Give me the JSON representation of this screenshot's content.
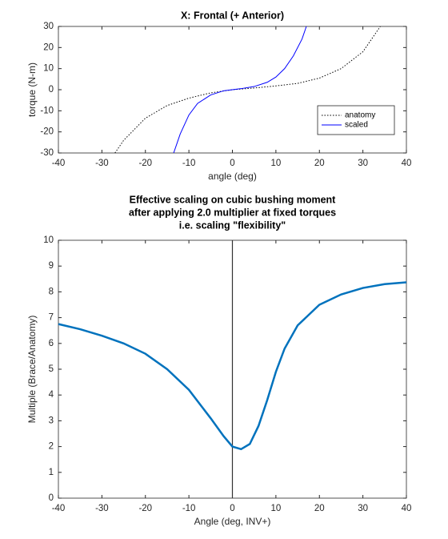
{
  "chart_data": [
    {
      "type": "line",
      "title": "X: Frontal (+ Anterior)",
      "xlabel": "angle (deg)",
      "ylabel": "torque (N-m)",
      "xlim": [
        -40,
        40
      ],
      "xticks": [
        -40,
        -30,
        -20,
        -10,
        0,
        10,
        20,
        30,
        40
      ],
      "ylim": [
        -30,
        30
      ],
      "yticks": [
        -30,
        -20,
        -10,
        0,
        10,
        20,
        30
      ],
      "legend": "lower right",
      "series": [
        {
          "name": "anatomy",
          "color": "#000000",
          "dash": "dotted",
          "x": [
            -27,
            -25,
            -20,
            -15,
            -10,
            -5,
            0,
            5,
            10,
            15,
            20,
            25,
            30,
            34
          ],
          "values": [
            -30,
            -24,
            -13.5,
            -7.5,
            -4,
            -1.5,
            0,
            0.8,
            1.8,
            3,
            5.5,
            10,
            18,
            30
          ]
        },
        {
          "name": "scaled",
          "color": "#0000ff",
          "dash": "solid",
          "x": [
            -13.5,
            -12,
            -10,
            -8,
            -5,
            -2,
            0,
            2,
            5,
            8,
            10,
            12,
            14,
            16,
            17
          ],
          "values": [
            -30,
            -21,
            -12,
            -6.5,
            -2.5,
            -0.5,
            0,
            0.5,
            1.5,
            3.5,
            6,
            10,
            16,
            24,
            30
          ]
        }
      ]
    },
    {
      "type": "line",
      "title": [
        "Effective scaling on cubic bushing moment",
        "after applying 2.0 multiplier at fixed torques",
        "i.e. scaling \"flexibility\""
      ],
      "xlabel": "Angle (deg, INV+)",
      "ylabel": "Multiple (Brace/Anatomy)",
      "xlim": [
        -40,
        40
      ],
      "xticks": [
        -40,
        -30,
        -20,
        -10,
        0,
        10,
        20,
        30,
        40
      ],
      "ylim": [
        0,
        10
      ],
      "yticks": [
        0,
        1,
        2,
        3,
        4,
        5,
        6,
        7,
        8,
        9,
        10
      ],
      "vlines": [
        0
      ],
      "series": [
        {
          "color": "#0072bd",
          "dash": "solid",
          "width": 2.5,
          "x": [
            -40,
            -35,
            -30,
            -25,
            -20,
            -15,
            -10,
            -5,
            -2,
            0,
            2,
            4,
            6,
            8,
            10,
            12,
            15,
            20,
            25,
            30,
            35,
            40
          ],
          "values": [
            6.75,
            6.55,
            6.3,
            6.0,
            5.6,
            5.0,
            4.2,
            3.1,
            2.4,
            2.0,
            1.9,
            2.1,
            2.8,
            3.8,
            4.9,
            5.8,
            6.7,
            7.5,
            7.9,
            8.15,
            8.3,
            8.37
          ]
        }
      ]
    }
  ]
}
